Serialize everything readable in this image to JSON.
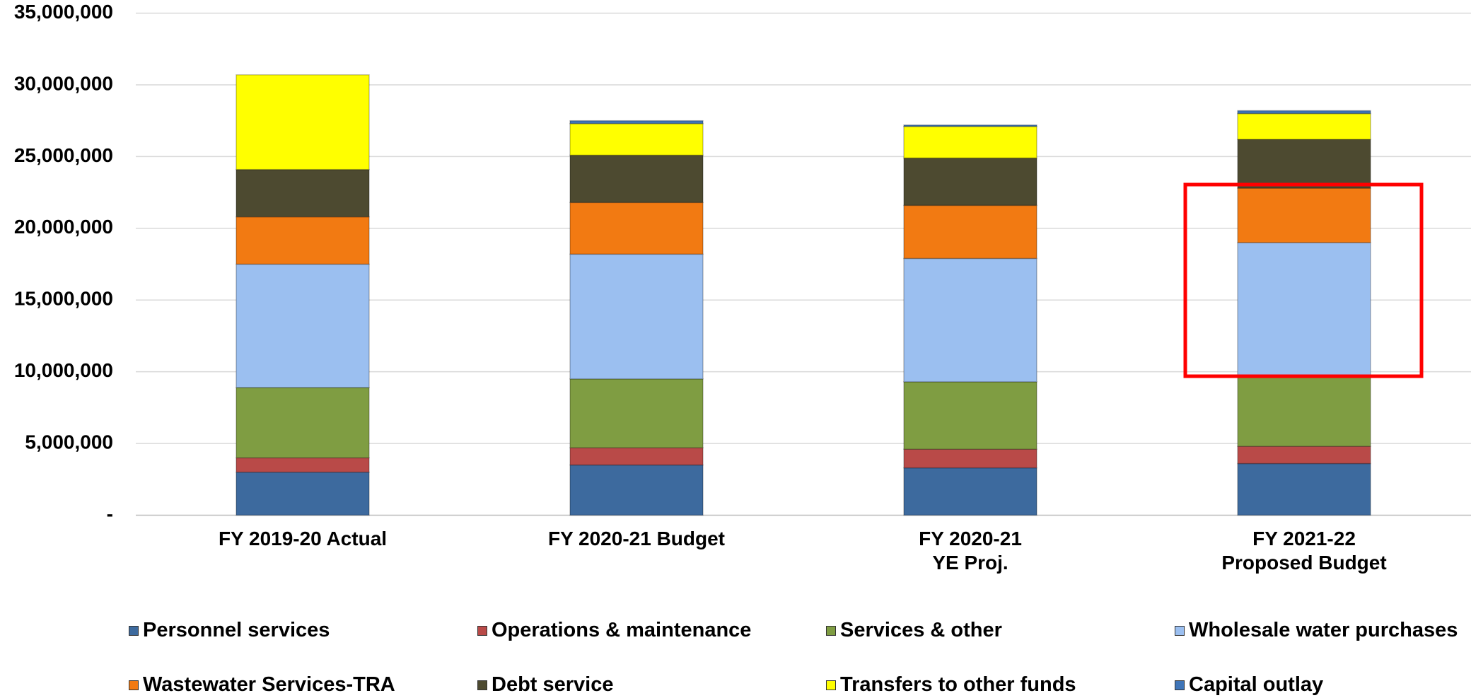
{
  "chart_data": {
    "type": "stacked_bar",
    "categories": [
      "FY 2019-20 Actual",
      "FY 2020-21 Budget",
      "FY 2020-21\nYE Proj.",
      "FY 2021-22\nProposed Budget"
    ],
    "series": [
      {
        "name": "Personnel services",
        "color": "#3d6a9e",
        "values": [
          3000000,
          3500000,
          3300000,
          3600000
        ]
      },
      {
        "name": "Operations & maintenance",
        "color": "#b94a48",
        "values": [
          1000000,
          1200000,
          1300000,
          1200000
        ]
      },
      {
        "name": "Services & other",
        "color": "#7f9d42",
        "values": [
          4900000,
          4800000,
          4700000,
          4800000
        ]
      },
      {
        "name": "Wholesale water purchases",
        "color": "#9bbff0",
        "values": [
          8600000,
          8700000,
          8600000,
          9400000
        ]
      },
      {
        "name": "Wastewater Services-TRA",
        "color": "#f27a12",
        "values": [
          3300000,
          3600000,
          3700000,
          3800000
        ]
      },
      {
        "name": "Debt service",
        "color": "#4d4a30",
        "values": [
          3300000,
          3300000,
          3300000,
          3400000
        ]
      },
      {
        "name": "Transfers to other funds",
        "color": "#ffff00",
        "values": [
          6600000,
          2200000,
          2200000,
          1800000
        ]
      },
      {
        "name": "Capital outlay",
        "color": "#3f75b8",
        "values": [
          0,
          200000,
          100000,
          200000
        ]
      }
    ],
    "ylim": [
      0,
      35000000
    ],
    "yticks": [
      {
        "value": 0,
        "label": "-"
      },
      {
        "value": 5000000,
        "label": "5,000,000"
      },
      {
        "value": 10000000,
        "label": "10,000,000"
      },
      {
        "value": 15000000,
        "label": "15,000,000"
      },
      {
        "value": 20000000,
        "label": "20,000,000"
      },
      {
        "value": 25000000,
        "label": "25,000,000"
      },
      {
        "value": 30000000,
        "label": "30,000,000"
      },
      {
        "value": 35000000,
        "label": "35,000,000"
      }
    ],
    "grid": true
  }
}
